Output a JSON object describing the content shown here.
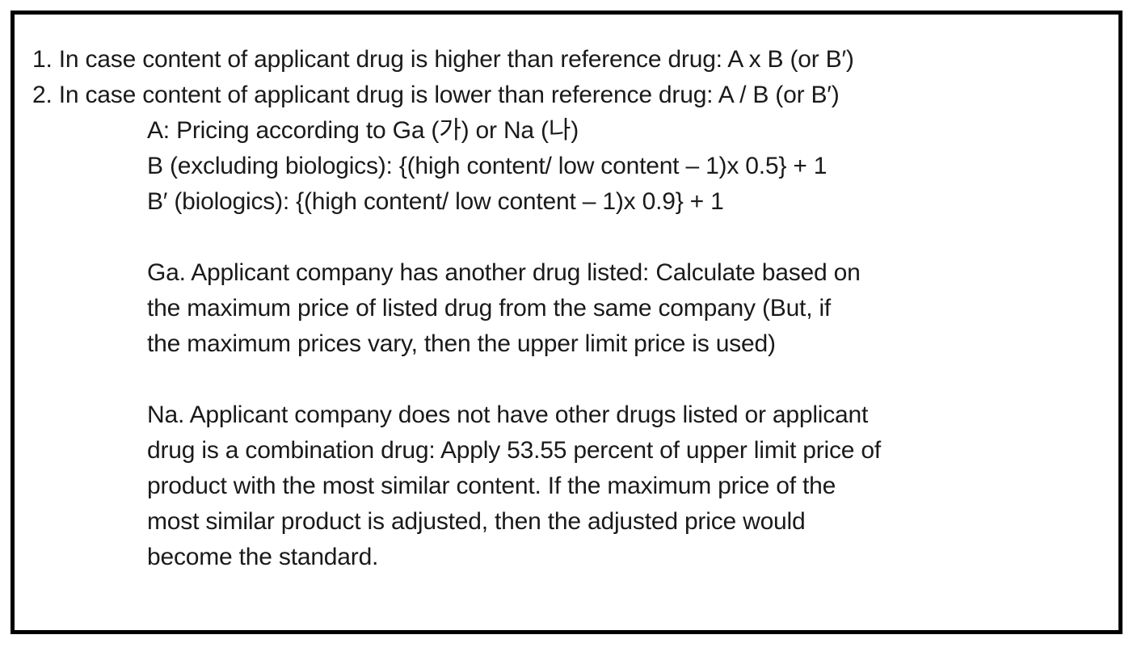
{
  "colors": {
    "border": "#000000",
    "text": "#1a1a1a",
    "background": "#ffffff"
  },
  "document": {
    "numbered_items": [
      "1. In case content of applicant drug is higher than reference drug: A x B (or B′)",
      "2. In case content of applicant drug is lower than reference drug: A / B (or B′)"
    ],
    "definitions": [
      "A: Pricing according to Ga (가) or Na (나)",
      "B (excluding biologics): {(high content/ low content – 1)x 0.5} + 1",
      "B′ (biologics): {(high content/ low content – 1)x 0.9} + 1"
    ],
    "paragraph_ga": [
      "Ga. Applicant company has another drug listed: Calculate based on",
      "the maximum price of listed drug from the same company (But, if",
      "the maximum prices vary, then the upper limit price is used)"
    ],
    "paragraph_na": [
      "Na. Applicant company does not have other drugs listed or applicant",
      "drug is a combination drug: Apply 53.55 percent of upper limit price of",
      "product with the most similar content. If the maximum price of the",
      "most similar product is adjusted, then the adjusted price would",
      "become the standard."
    ]
  }
}
